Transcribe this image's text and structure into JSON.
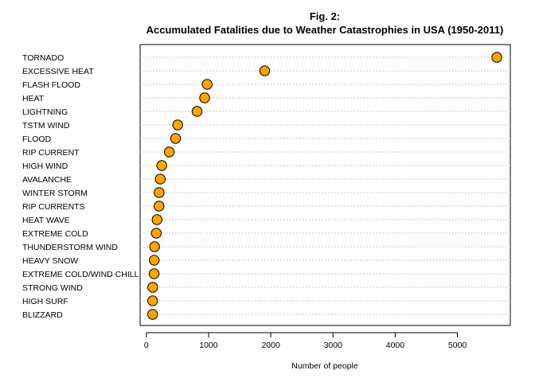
{
  "chart_data": {
    "type": "scatter",
    "title": "Fig. 2:",
    "subtitle": "Accumulated Fatalities due to Weather Catastrophies in USA (1950-2011)",
    "xlabel": "Number of people",
    "ylabel": "",
    "xlim": [
      -100,
      5850
    ],
    "xticks": [
      0,
      1000,
      2000,
      3000,
      4000,
      5000
    ],
    "grid": "horizontal-dotted",
    "marker_color": "#FFA500",
    "marker_edge": "#000000",
    "categories": [
      "TORNADO",
      "EXCESSIVE HEAT",
      "FLASH FLOOD",
      "HEAT",
      "LIGHTNING",
      "TSTM WIND",
      "FLOOD",
      "RIP CURRENT",
      "HIGH WIND",
      "AVALANCHE",
      "WINTER STORM",
      "RIP CURRENTS",
      "HEAT WAVE",
      "EXTREME COLD",
      "THUNDERSTORM WIND",
      "HEAVY SNOW",
      "EXTREME COLD/WIND CHILL",
      "STRONG WIND",
      "HIGH SURF",
      "BLIZZARD"
    ],
    "values": [
      5633,
      1903,
      978,
      937,
      816,
      504,
      470,
      368,
      248,
      224,
      206,
      204,
      172,
      160,
      133,
      127,
      125,
      103,
      101,
      101
    ]
  }
}
